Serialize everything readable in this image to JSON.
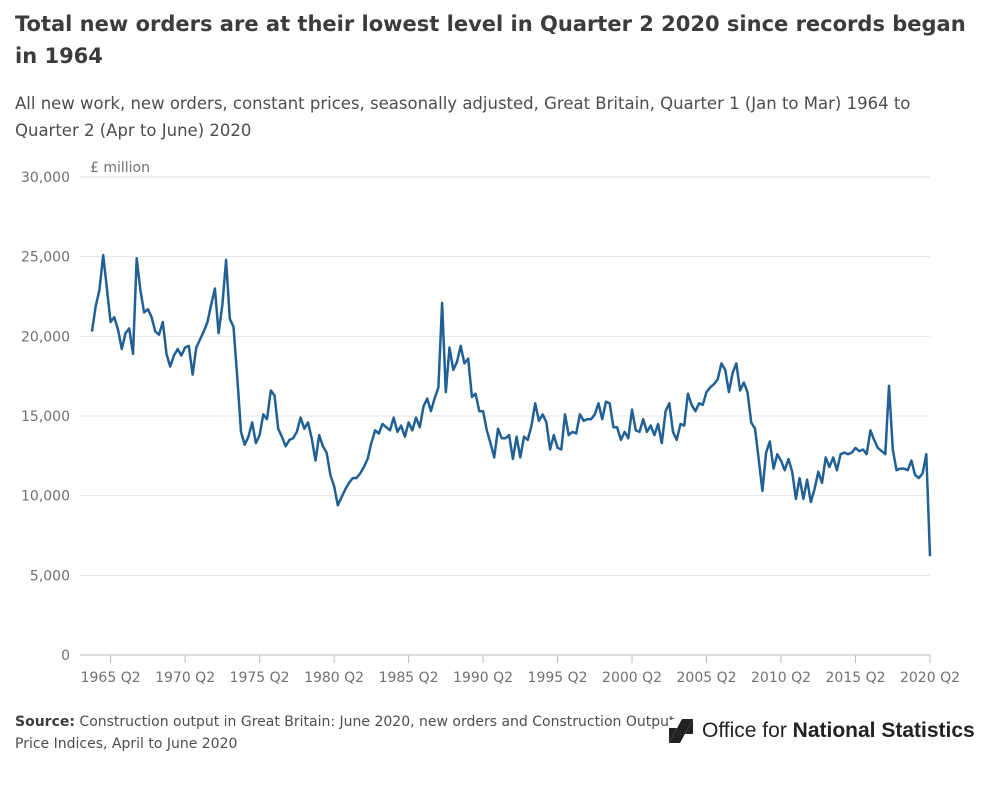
{
  "header": {
    "title": "Total new orders are at their lowest level in Quarter 2 2020 since records began in 1964",
    "subtitle": "All new work, new orders, constant prices, seasonally adjusted, Great Britain, Quarter 1 (Jan to Mar) 1964 to Quarter 2 (Apr to June) 2020"
  },
  "footer": {
    "source_label": "Source:",
    "source_text": "Construction output in Great Britain: June 2020, new orders and Construction Output Price Indices, April to June 2020",
    "logo_regular": "Office for ",
    "logo_bold": "National Statistics",
    "logo_icon": "ons-logo-icon"
  },
  "chart_data": {
    "type": "line",
    "title": "Total new orders are at their lowest level in Quarter 2 2020 since records began in 1964",
    "ylabel": "£ million",
    "xlabel": "",
    "ylim": [
      0,
      30000
    ],
    "yticks": [
      0,
      5000,
      10000,
      15000,
      20000,
      25000,
      30000
    ],
    "ytick_labels": [
      "0",
      "5,000",
      "10,000",
      "15,000",
      "20,000",
      "25,000",
      "30,000"
    ],
    "xtick_labels": [
      "1965 Q2",
      "1970 Q2",
      "1975 Q2",
      "1980 Q2",
      "1985 Q2",
      "1990 Q2",
      "1995 Q2",
      "2000 Q2",
      "2005 Q2",
      "2010 Q2",
      "2015 Q2",
      "2020 Q2"
    ],
    "grid": true,
    "color": "#206095",
    "start": "1964 Q1",
    "end": "2020 Q2",
    "series": [
      {
        "name": "All new work, new orders",
        "anchors": [
          [
            "1964 Q1",
            20300
          ],
          [
            "1964 Q2",
            21900
          ],
          [
            "1964 Q3",
            22900
          ],
          [
            "1964 Q4",
            25100
          ],
          [
            "1965 Q1",
            23000
          ],
          [
            "1965 Q2",
            20900
          ],
          [
            "1965 Q3",
            21200
          ],
          [
            "1965 Q4",
            20400
          ],
          [
            "1966 Q1",
            19200
          ],
          [
            "1966 Q2",
            20200
          ],
          [
            "1966 Q3",
            20500
          ],
          [
            "1966 Q4",
            18900
          ],
          [
            "1967 Q1",
            24900
          ],
          [
            "1967 Q2",
            22900
          ],
          [
            "1967 Q3",
            21500
          ],
          [
            "1967 Q4",
            21700
          ],
          [
            "1968 Q1",
            21200
          ],
          [
            "1968 Q2",
            20300
          ],
          [
            "1968 Q3",
            20100
          ],
          [
            "1968 Q4",
            20900
          ],
          [
            "1969 Q1",
            18900
          ],
          [
            "1969 Q2",
            18100
          ],
          [
            "1969 Q3",
            18800
          ],
          [
            "1969 Q4",
            19200
          ],
          [
            "1970 Q1",
            18800
          ],
          [
            "1970 Q2",
            19300
          ],
          [
            "1970 Q3",
            19400
          ],
          [
            "1970 Q4",
            17600
          ],
          [
            "1971 Q1",
            19300
          ],
          [
            "1971 Q2",
            19800
          ],
          [
            "1971 Q3",
            20300
          ],
          [
            "1971 Q4",
            20900
          ],
          [
            "1972 Q1",
            22000
          ],
          [
            "1972 Q2",
            23000
          ],
          [
            "1972 Q3",
            20200
          ],
          [
            "1972 Q4",
            22000
          ],
          [
            "1973 Q1",
            24800
          ],
          [
            "1973 Q2",
            21100
          ],
          [
            "1973 Q3",
            20600
          ],
          [
            "1973 Q4",
            17400
          ],
          [
            "1974 Q1",
            14000
          ],
          [
            "1974 Q2",
            13200
          ],
          [
            "1974 Q3",
            13700
          ],
          [
            "1974 Q4",
            14600
          ],
          [
            "1975 Q1",
            13300
          ],
          [
            "1975 Q2",
            13800
          ],
          [
            "1975 Q3",
            15100
          ],
          [
            "1975 Q4",
            14800
          ],
          [
            "1976 Q1",
            16600
          ],
          [
            "1976 Q2",
            16300
          ],
          [
            "1976 Q3",
            14200
          ],
          [
            "1976 Q4",
            13700
          ],
          [
            "1977 Q1",
            13100
          ],
          [
            "1977 Q2",
            13500
          ],
          [
            "1977 Q3",
            13600
          ],
          [
            "1977 Q4",
            14000
          ],
          [
            "1978 Q1",
            14900
          ],
          [
            "1978 Q2",
            14200
          ],
          [
            "1978 Q3",
            14600
          ],
          [
            "1978 Q4",
            13600
          ],
          [
            "1979 Q1",
            12200
          ],
          [
            "1979 Q2",
            13800
          ],
          [
            "1979 Q3",
            13100
          ],
          [
            "1979 Q4",
            12700
          ],
          [
            "1980 Q1",
            11300
          ],
          [
            "1980 Q2",
            10600
          ],
          [
            "1980 Q3",
            9400
          ],
          [
            "1980 Q4",
            9900
          ],
          [
            "1981 Q1",
            10400
          ],
          [
            "1981 Q2",
            10800
          ],
          [
            "1981 Q3",
            11100
          ],
          [
            "1981 Q4",
            11100
          ],
          [
            "1982 Q1",
            11400
          ],
          [
            "1982 Q2",
            11800
          ],
          [
            "1982 Q3",
            12300
          ],
          [
            "1982 Q4",
            13300
          ],
          [
            "1983 Q1",
            14100
          ],
          [
            "1983 Q2",
            13900
          ],
          [
            "1983 Q3",
            14500
          ],
          [
            "1983 Q4",
            14300
          ],
          [
            "1984 Q1",
            14100
          ],
          [
            "1984 Q2",
            14900
          ],
          [
            "1984 Q3",
            14000
          ],
          [
            "1984 Q4",
            14400
          ],
          [
            "1985 Q1",
            13700
          ],
          [
            "1985 Q2",
            14600
          ],
          [
            "1985 Q3",
            14100
          ],
          [
            "1985 Q4",
            14900
          ],
          [
            "1986 Q1",
            14300
          ],
          [
            "1986 Q2",
            15600
          ],
          [
            "1986 Q3",
            16100
          ],
          [
            "1986 Q4",
            15300
          ],
          [
            "1987 Q1",
            16100
          ],
          [
            "1987 Q2",
            16800
          ],
          [
            "1987 Q3",
            22100
          ],
          [
            "1987 Q4",
            16500
          ],
          [
            "1988 Q1",
            19300
          ],
          [
            "1988 Q2",
            17900
          ],
          [
            "1988 Q3",
            18400
          ],
          [
            "1988 Q4",
            19400
          ],
          [
            "1989 Q1",
            18300
          ],
          [
            "1989 Q2",
            18600
          ],
          [
            "1989 Q3",
            16200
          ],
          [
            "1989 Q4",
            16400
          ],
          [
            "1990 Q1",
            15300
          ],
          [
            "1990 Q2",
            15300
          ],
          [
            "1990 Q3",
            14100
          ],
          [
            "1990 Q4",
            13300
          ],
          [
            "1991 Q1",
            12400
          ],
          [
            "1991 Q2",
            14200
          ],
          [
            "1991 Q3",
            13600
          ],
          [
            "1991 Q4",
            13600
          ],
          [
            "1992 Q1",
            13800
          ],
          [
            "1992 Q2",
            12300
          ],
          [
            "1992 Q3",
            13700
          ],
          [
            "1992 Q4",
            12400
          ],
          [
            "1993 Q1",
            13700
          ],
          [
            "1993 Q2",
            13500
          ],
          [
            "1993 Q3",
            14400
          ],
          [
            "1993 Q4",
            15800
          ],
          [
            "1994 Q1",
            14700
          ],
          [
            "1994 Q2",
            15100
          ],
          [
            "1994 Q3",
            14600
          ],
          [
            "1994 Q4",
            12900
          ],
          [
            "1995 Q1",
            13800
          ],
          [
            "1995 Q2",
            13000
          ],
          [
            "1995 Q3",
            12900
          ],
          [
            "1995 Q4",
            15100
          ],
          [
            "1996 Q1",
            13800
          ],
          [
            "1996 Q2",
            14000
          ],
          [
            "1996 Q3",
            13900
          ],
          [
            "1996 Q4",
            15100
          ],
          [
            "1997 Q1",
            14700
          ],
          [
            "1997 Q2",
            14800
          ],
          [
            "1997 Q3",
            14800
          ],
          [
            "1997 Q4",
            15100
          ],
          [
            "1998 Q1",
            15800
          ],
          [
            "1998 Q2",
            14800
          ],
          [
            "1998 Q3",
            15900
          ],
          [
            "1998 Q4",
            15800
          ],
          [
            "1999 Q1",
            14300
          ],
          [
            "1999 Q2",
            14300
          ],
          [
            "1999 Q3",
            13500
          ],
          [
            "1999 Q4",
            14000
          ],
          [
            "2000 Q1",
            13600
          ],
          [
            "2000 Q2",
            15400
          ],
          [
            "2000 Q3",
            14100
          ],
          [
            "2000 Q4",
            14000
          ],
          [
            "2001 Q1",
            14800
          ],
          [
            "2001 Q2",
            14000
          ],
          [
            "2001 Q3",
            14400
          ],
          [
            "2001 Q4",
            13800
          ],
          [
            "2002 Q1",
            14500
          ],
          [
            "2002 Q2",
            13300
          ],
          [
            "2002 Q3",
            15300
          ],
          [
            "2002 Q4",
            15800
          ],
          [
            "2003 Q1",
            14000
          ],
          [
            "2003 Q2",
            13500
          ],
          [
            "2003 Q3",
            14500
          ],
          [
            "2003 Q4",
            14400
          ],
          [
            "2004 Q1",
            16400
          ],
          [
            "2004 Q2",
            15700
          ],
          [
            "2004 Q3",
            15300
          ],
          [
            "2004 Q4",
            15800
          ],
          [
            "2005 Q1",
            15700
          ],
          [
            "2005 Q2",
            16500
          ],
          [
            "2005 Q3",
            16800
          ],
          [
            "2005 Q4",
            17000
          ],
          [
            "2006 Q1",
            17300
          ],
          [
            "2006 Q2",
            18300
          ],
          [
            "2006 Q3",
            17900
          ],
          [
            "2006 Q4",
            16500
          ],
          [
            "2007 Q1",
            17700
          ],
          [
            "2007 Q2",
            18300
          ],
          [
            "2007 Q3",
            16600
          ],
          [
            "2007 Q4",
            17100
          ],
          [
            "2008 Q1",
            16500
          ],
          [
            "2008 Q2",
            14600
          ],
          [
            "2008 Q3",
            14200
          ],
          [
            "2008 Q4",
            12300
          ],
          [
            "2009 Q1",
            10300
          ],
          [
            "2009 Q2",
            12700
          ],
          [
            "2009 Q3",
            13400
          ],
          [
            "2009 Q4",
            11700
          ],
          [
            "2010 Q1",
            12600
          ],
          [
            "2010 Q2",
            12200
          ],
          [
            "2010 Q3",
            11600
          ],
          [
            "2010 Q4",
            12300
          ],
          [
            "2011 Q1",
            11500
          ],
          [
            "2011 Q2",
            9800
          ],
          [
            "2011 Q3",
            11100
          ],
          [
            "2011 Q4",
            9800
          ],
          [
            "2012 Q1",
            11000
          ],
          [
            "2012 Q2",
            9600
          ],
          [
            "2012 Q3",
            10400
          ],
          [
            "2012 Q4",
            11500
          ],
          [
            "2013 Q1",
            10800
          ],
          [
            "2013 Q2",
            12400
          ],
          [
            "2013 Q3",
            11800
          ],
          [
            "2013 Q4",
            12400
          ],
          [
            "2014 Q1",
            11600
          ],
          [
            "2014 Q2",
            12600
          ],
          [
            "2014 Q3",
            12700
          ],
          [
            "2014 Q4",
            12600
          ],
          [
            "2015 Q1",
            12700
          ],
          [
            "2015 Q2",
            13000
          ],
          [
            "2015 Q3",
            12800
          ],
          [
            "2015 Q4",
            12900
          ],
          [
            "2016 Q1",
            12600
          ],
          [
            "2016 Q2",
            14100
          ],
          [
            "2016 Q3",
            13500
          ],
          [
            "2016 Q4",
            13000
          ],
          [
            "2017 Q1",
            12800
          ],
          [
            "2017 Q2",
            12600
          ],
          [
            "2017 Q3",
            16900
          ],
          [
            "2017 Q4",
            12900
          ],
          [
            "2018 Q1",
            11600
          ],
          [
            "2018 Q2",
            11700
          ],
          [
            "2018 Q3",
            11700
          ],
          [
            "2018 Q4",
            11600
          ],
          [
            "2019 Q1",
            12200
          ],
          [
            "2019 Q2",
            11300
          ],
          [
            "2019 Q3",
            11100
          ],
          [
            "2019 Q4",
            11400
          ],
          [
            "2020 Q1",
            12600
          ],
          [
            "2020 Q2",
            6200
          ]
        ]
      }
    ]
  }
}
